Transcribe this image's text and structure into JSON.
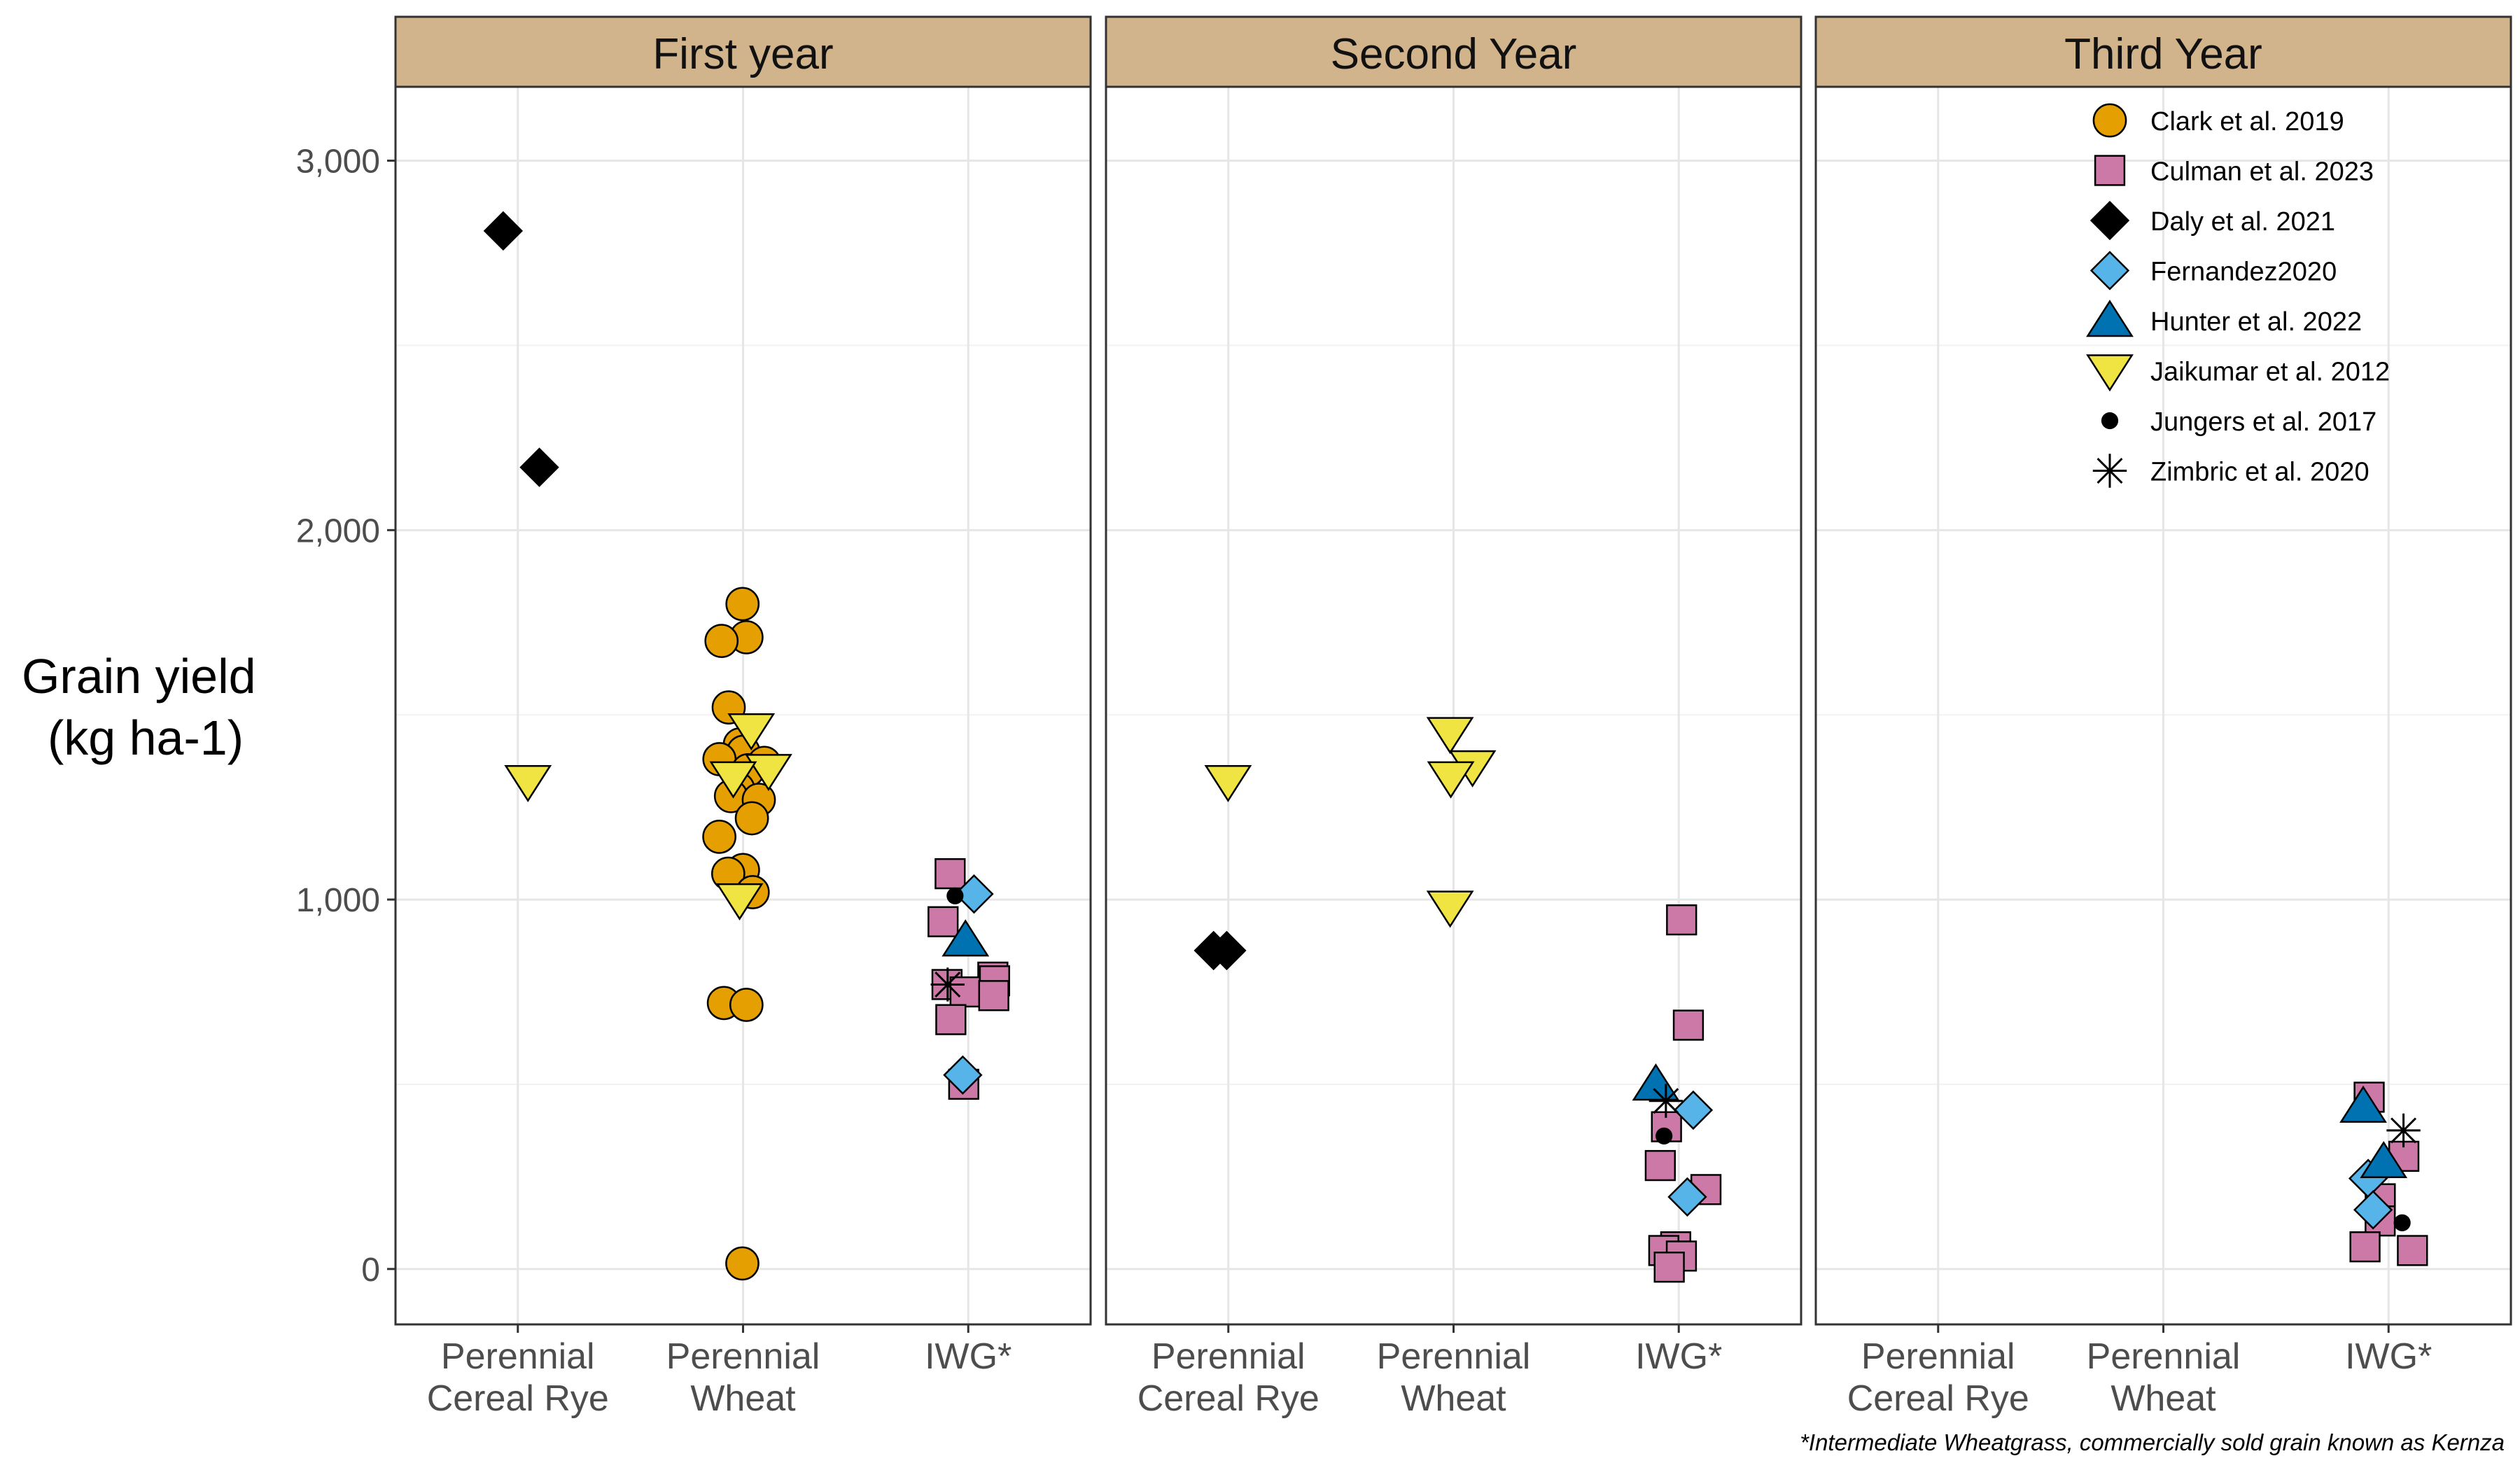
{
  "chart_data": {
    "type": "scatter",
    "ylabel_lines": [
      "Grain yield",
      "(kg ha-1)"
    ],
    "ylim": [
      -150,
      3200
    ],
    "yticks": [
      0,
      1000,
      2000,
      3000
    ],
    "ytick_labels": [
      "0",
      "1,000",
      "2,000",
      "3,000"
    ],
    "categories": [
      "Perennial Cereal Rye",
      "Perennial Wheat",
      "IWG*"
    ],
    "category_label_lines": [
      [
        "Perennial",
        "Cereal Rye"
      ],
      [
        "Perennial",
        "Wheat"
      ],
      [
        "IWG*"
      ]
    ],
    "facets": [
      "First year",
      "Second Year",
      "Third Year"
    ],
    "grid": true,
    "legend_position": "top-right",
    "caption": "*Intermediate Wheatgrass, commercially sold grain known as Kernza",
    "series": [
      {
        "name": "Clark et al. 2019",
        "shape": "circle",
        "fill": "#E69F00",
        "points": [
          [
            0,
            1,
            1800
          ],
          [
            0,
            1,
            1710
          ],
          [
            0,
            1,
            1700
          ],
          [
            0,
            1,
            1520
          ],
          [
            0,
            1,
            1420
          ],
          [
            0,
            1,
            1400
          ],
          [
            0,
            1,
            1380
          ],
          [
            0,
            1,
            1370
          ],
          [
            0,
            1,
            1350
          ],
          [
            0,
            1,
            1300
          ],
          [
            0,
            1,
            1280
          ],
          [
            0,
            1,
            1270
          ],
          [
            0,
            1,
            1220
          ],
          [
            0,
            1,
            1170
          ],
          [
            0,
            1,
            1080
          ],
          [
            0,
            1,
            1070
          ],
          [
            0,
            1,
            1020
          ],
          [
            0,
            1,
            720
          ],
          [
            0,
            1,
            715
          ],
          [
            0,
            1,
            15
          ]
        ]
      },
      {
        "name": "Culman et al. 2023",
        "shape": "square",
        "fill": "#CC79A7",
        "points": [
          [
            0,
            2,
            1070
          ],
          [
            0,
            2,
            940
          ],
          [
            0,
            2,
            790
          ],
          [
            0,
            2,
            780
          ],
          [
            0,
            2,
            770
          ],
          [
            0,
            2,
            750
          ],
          [
            0,
            2,
            740
          ],
          [
            0,
            2,
            675
          ],
          [
            0,
            2,
            500
          ],
          [
            1,
            2,
            945
          ],
          [
            1,
            2,
            660
          ],
          [
            1,
            2,
            385
          ],
          [
            1,
            2,
            280
          ],
          [
            1,
            2,
            215
          ],
          [
            1,
            2,
            60
          ],
          [
            1,
            2,
            50
          ],
          [
            1,
            2,
            35
          ],
          [
            1,
            2,
            5
          ],
          [
            2,
            2,
            465
          ],
          [
            2,
            2,
            305
          ],
          [
            2,
            2,
            190
          ],
          [
            2,
            2,
            130
          ],
          [
            2,
            2,
            60
          ],
          [
            2,
            2,
            50
          ]
        ]
      },
      {
        "name": "Daly et al. 2021",
        "shape": "diamond",
        "fill": "#000000",
        "points": [
          [
            0,
            0,
            2810
          ],
          [
            0,
            0,
            2170
          ],
          [
            1,
            0,
            862
          ],
          [
            1,
            0,
            862
          ]
        ]
      },
      {
        "name": "Fernandez2020",
        "shape": "diamond",
        "fill": "#56B4E9",
        "points": [
          [
            0,
            2,
            1015
          ],
          [
            0,
            2,
            525
          ],
          [
            1,
            2,
            430
          ],
          [
            1,
            2,
            195
          ],
          [
            2,
            2,
            245
          ],
          [
            2,
            2,
            160
          ]
        ]
      },
      {
        "name": "Hunter et al. 2022",
        "shape": "triangle-up",
        "fill": "#0072B2",
        "points": [
          [
            0,
            2,
            890
          ],
          [
            1,
            2,
            500
          ],
          [
            2,
            2,
            440
          ],
          [
            2,
            2,
            290
          ]
        ]
      },
      {
        "name": "Jaikumar et al. 2012",
        "shape": "triangle-down",
        "fill": "#F0E442",
        "points": [
          [
            0,
            0,
            1320
          ],
          [
            0,
            1,
            1460
          ],
          [
            0,
            1,
            1350
          ],
          [
            0,
            1,
            1330
          ],
          [
            0,
            1,
            1000
          ],
          [
            1,
            0,
            1320
          ],
          [
            1,
            1,
            1450
          ],
          [
            1,
            1,
            1360
          ],
          [
            1,
            1,
            1330
          ],
          [
            1,
            1,
            980
          ]
        ]
      },
      {
        "name": "Jungers et al. 2017",
        "shape": "dot",
        "fill": "#000000",
        "points": [
          [
            0,
            2,
            1010
          ],
          [
            1,
            2,
            360
          ],
          [
            2,
            2,
            125
          ]
        ]
      },
      {
        "name": "Zimbric et al. 2020",
        "shape": "asterisk",
        "fill": "#000000",
        "points": [
          [
            0,
            2,
            770
          ],
          [
            1,
            2,
            455
          ],
          [
            2,
            2,
            375
          ]
        ]
      }
    ]
  }
}
